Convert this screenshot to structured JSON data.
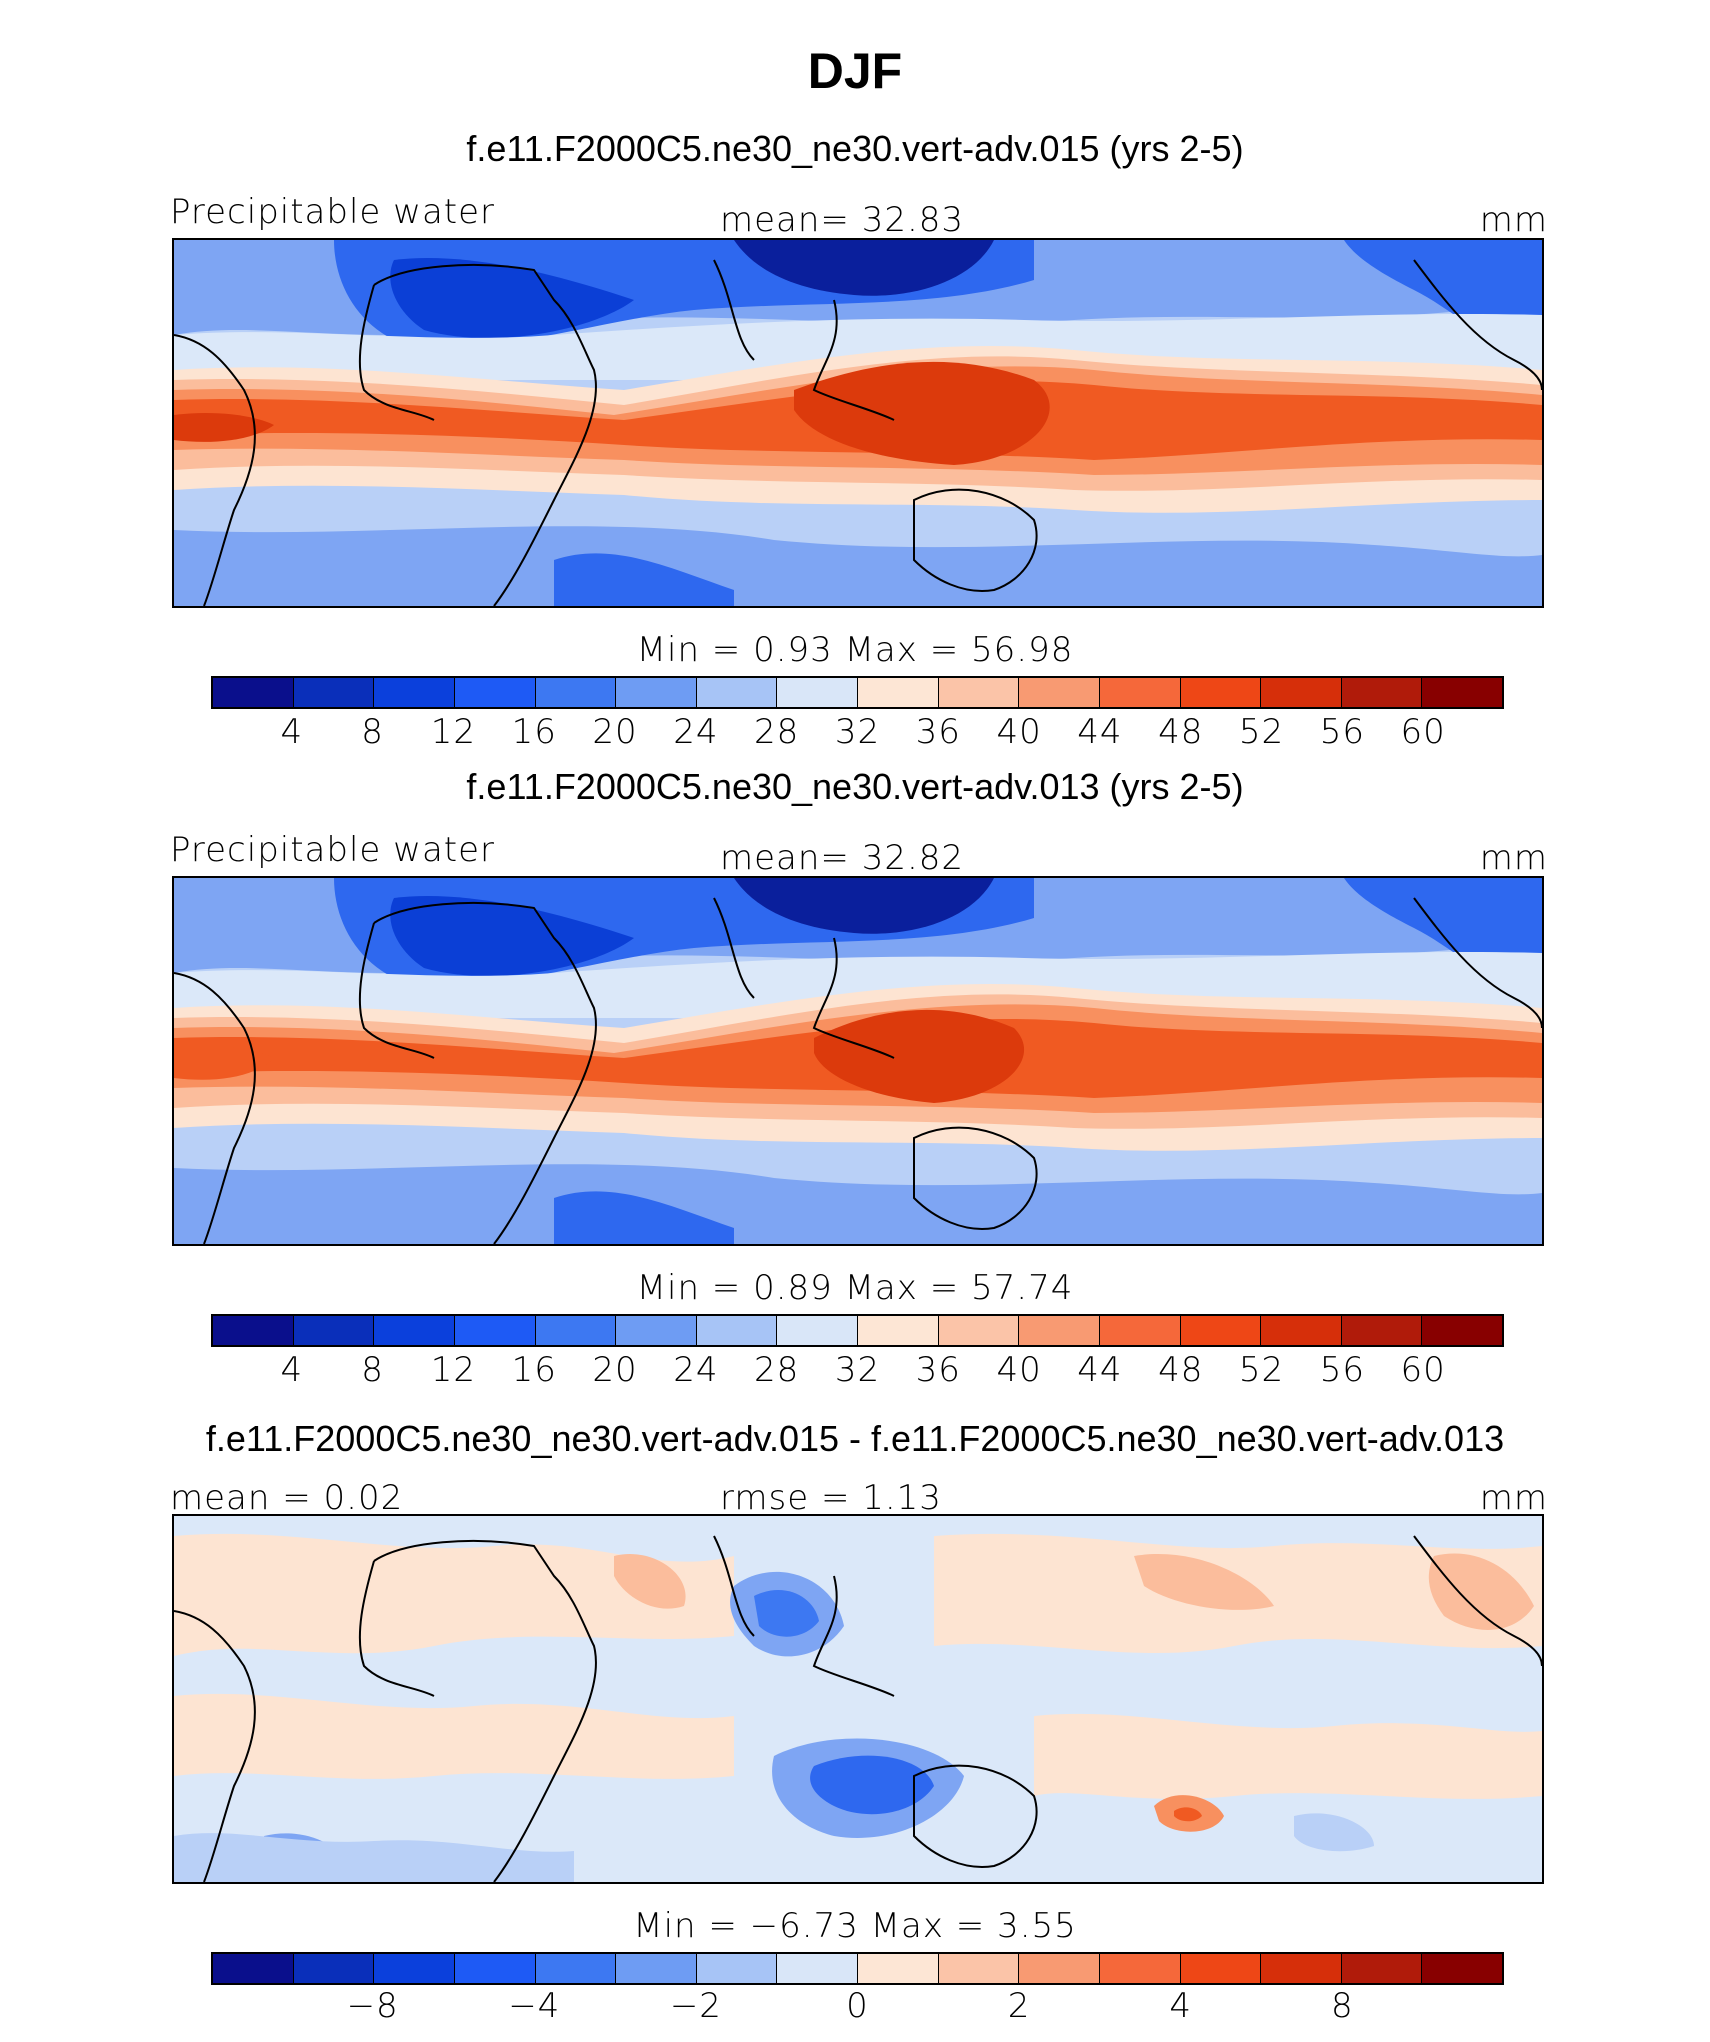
{
  "title": "DJF",
  "panels": [
    {
      "case_title": "f.e11.F2000C5.ne30_ne30.vert-adv.015 (yrs 2-5)",
      "left_label": "Precipitable water",
      "center_label": "mean=   32.83",
      "units": "mm",
      "min_max_label": "Min  =    0.93  Max  =   56.98",
      "levels": [
        "4",
        "8",
        "12",
        "16",
        "20",
        "24",
        "28",
        "32",
        "36",
        "40",
        "44",
        "48",
        "52",
        "56",
        "60"
      ],
      "field": {
        "mean": 32.83,
        "min": 0.93,
        "max": 56.98
      }
    },
    {
      "case_title": "f.e11.F2000C5.ne30_ne30.vert-adv.013 (yrs 2-5)",
      "left_label": "Precipitable water",
      "center_label": "mean=   32.82",
      "units": "mm",
      "min_max_label": "Min  =    0.89  Max  =   57.74",
      "levels": [
        "4",
        "8",
        "12",
        "16",
        "20",
        "24",
        "28",
        "32",
        "36",
        "40",
        "44",
        "48",
        "52",
        "56",
        "60"
      ],
      "field": {
        "mean": 32.82,
        "min": 0.89,
        "max": 57.74
      }
    },
    {
      "case_title": "f.e11.F2000C5.ne30_ne30.vert-adv.015 - f.e11.F2000C5.ne30_ne30.vert-adv.013",
      "left_label": "mean  =    0.02",
      "center_label": "rmse  =    1.13",
      "units": "mm",
      "min_max_label": "Min  =  −6.73  Max  =     3.55",
      "levels": [
        "−8",
        "",
        "−4",
        "",
        "−2",
        "",
        "0",
        "",
        "2",
        "",
        "4",
        "",
        "8"
      ],
      "field": {
        "mean": 0.02,
        "rmse": 1.13,
        "min": -6.73,
        "max": 3.55
      }
    }
  ],
  "colorbar_colors": [
    "#0a0f8c",
    "#0a2fba",
    "#0b40dc",
    "#1e5af5",
    "#3d78f2",
    "#6e9cf3",
    "#a7c4f6",
    "#d9e6f8",
    "#fde6d5",
    "#fbc4a8",
    "#f89a72",
    "#f5683a",
    "#ee4716",
    "#d62f0a",
    "#b01b0a",
    "#880000"
  ],
  "map_colors": {
    "very_dry": "#0b3fd6",
    "dry": "#2e68ef",
    "mid_dry": "#7ea5f3",
    "light_dry": "#b9d0f7",
    "neutral_low": "#dbe8f9",
    "neutral_high": "#fde4d2",
    "light_wet": "#fbbd9c",
    "mid_wet": "#f8905f",
    "wet": "#f05a22",
    "very_wet": "#dc3a0c",
    "coast": "#000000"
  }
}
